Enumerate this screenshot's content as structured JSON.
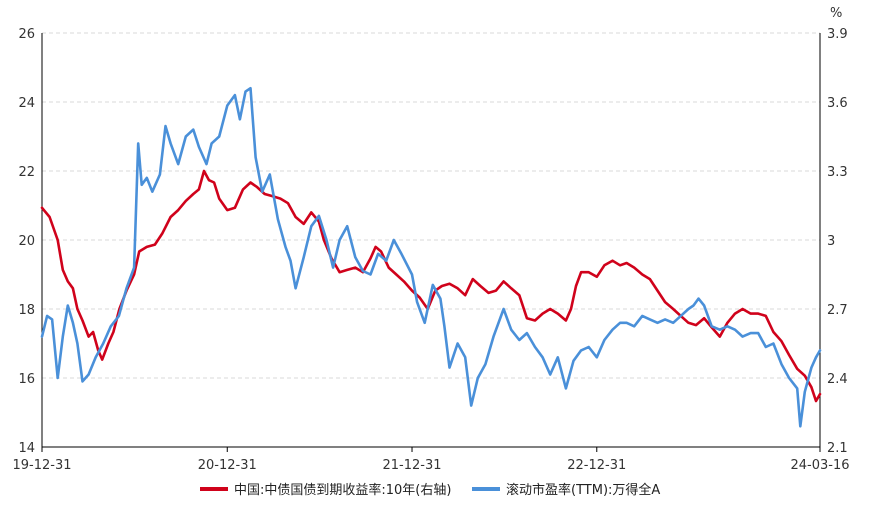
{
  "chart_data": {
    "type": "line",
    "grid": true,
    "legend_position": "bottom",
    "y_left": {
      "range": [
        14,
        26
      ],
      "ticks": [
        "14",
        "16",
        "18",
        "20",
        "22",
        "24",
        "26"
      ]
    },
    "y_right": {
      "unit": "%",
      "range": [
        2.1,
        3.9
      ],
      "ticks": [
        "2.1",
        "2.4",
        "2.7",
        "3",
        "3.3",
        "3.6",
        "3.9"
      ]
    },
    "x": {
      "range": [
        "2019-12-31",
        "2024-03-16"
      ],
      "tick_dates": [
        "2019-12-31",
        "2020-12-31",
        "2021-12-31",
        "2022-12-31",
        "2024-03-16"
      ],
      "tick_labels": [
        "19-12-31",
        "20-12-31",
        "21-12-31",
        "22-12-31",
        "24-03-16"
      ]
    },
    "series": [
      {
        "name": "中国:中债国债到期收益率:10年(右轴)",
        "axis": "right",
        "color": "#d0021b",
        "points": [
          [
            "2019-12-31",
            3.14
          ],
          [
            "2020-01-15",
            3.1
          ],
          [
            "2020-01-31",
            3.0
          ],
          [
            "2020-02-10",
            2.87
          ],
          [
            "2020-02-20",
            2.82
          ],
          [
            "2020-03-01",
            2.79
          ],
          [
            "2020-03-10",
            2.7
          ],
          [
            "2020-03-20",
            2.65
          ],
          [
            "2020-04-01",
            2.58
          ],
          [
            "2020-04-10",
            2.6
          ],
          [
            "2020-04-20",
            2.52
          ],
          [
            "2020-04-28",
            2.48
          ],
          [
            "2020-05-10",
            2.55
          ],
          [
            "2020-05-20",
            2.6
          ],
          [
            "2020-06-01",
            2.7
          ],
          [
            "2020-06-15",
            2.78
          ],
          [
            "2020-06-30",
            2.85
          ],
          [
            "2020-07-10",
            2.95
          ],
          [
            "2020-07-25",
            2.97
          ],
          [
            "2020-08-10",
            2.98
          ],
          [
            "2020-08-25",
            3.03
          ],
          [
            "2020-09-10",
            3.1
          ],
          [
            "2020-09-25",
            3.13
          ],
          [
            "2020-10-10",
            3.17
          ],
          [
            "2020-10-25",
            3.2
          ],
          [
            "2020-11-05",
            3.22
          ],
          [
            "2020-11-15",
            3.3
          ],
          [
            "2020-11-25",
            3.26
          ],
          [
            "2020-12-05",
            3.25
          ],
          [
            "2020-12-15",
            3.18
          ],
          [
            "2020-12-31",
            3.13
          ],
          [
            "2021-01-15",
            3.14
          ],
          [
            "2021-01-31",
            3.22
          ],
          [
            "2021-02-15",
            3.25
          ],
          [
            "2021-02-28",
            3.23
          ],
          [
            "2021-03-15",
            3.2
          ],
          [
            "2021-03-31",
            3.19
          ],
          [
            "2021-04-15",
            3.18
          ],
          [
            "2021-04-30",
            3.16
          ],
          [
            "2021-05-15",
            3.1
          ],
          [
            "2021-05-31",
            3.07
          ],
          [
            "2021-06-15",
            3.12
          ],
          [
            "2021-06-30",
            3.08
          ],
          [
            "2021-07-10",
            3.0
          ],
          [
            "2021-07-25",
            2.92
          ],
          [
            "2021-08-10",
            2.86
          ],
          [
            "2021-08-25",
            2.87
          ],
          [
            "2021-09-10",
            2.88
          ],
          [
            "2021-09-25",
            2.86
          ],
          [
            "2021-10-10",
            2.92
          ],
          [
            "2021-10-20",
            2.97
          ],
          [
            "2021-10-31",
            2.95
          ],
          [
            "2021-11-15",
            2.88
          ],
          [
            "2021-11-30",
            2.85
          ],
          [
            "2021-12-15",
            2.82
          ],
          [
            "2021-12-31",
            2.78
          ],
          [
            "2022-01-15",
            2.75
          ],
          [
            "2022-01-31",
            2.7
          ],
          [
            "2022-02-15",
            2.78
          ],
          [
            "2022-02-28",
            2.8
          ],
          [
            "2022-03-15",
            2.81
          ],
          [
            "2022-03-31",
            2.79
          ],
          [
            "2022-04-15",
            2.76
          ],
          [
            "2022-04-30",
            2.83
          ],
          [
            "2022-05-15",
            2.8
          ],
          [
            "2022-05-31",
            2.77
          ],
          [
            "2022-06-15",
            2.78
          ],
          [
            "2022-06-30",
            2.82
          ],
          [
            "2022-07-15",
            2.79
          ],
          [
            "2022-07-31",
            2.76
          ],
          [
            "2022-08-15",
            2.66
          ],
          [
            "2022-08-31",
            2.65
          ],
          [
            "2022-09-15",
            2.68
          ],
          [
            "2022-09-30",
            2.7
          ],
          [
            "2022-10-15",
            2.68
          ],
          [
            "2022-10-31",
            2.65
          ],
          [
            "2022-11-10",
            2.7
          ],
          [
            "2022-11-20",
            2.8
          ],
          [
            "2022-11-30",
            2.86
          ],
          [
            "2022-12-15",
            2.86
          ],
          [
            "2022-12-31",
            2.84
          ],
          [
            "2023-01-15",
            2.89
          ],
          [
            "2023-01-31",
            2.91
          ],
          [
            "2023-02-15",
            2.89
          ],
          [
            "2023-02-28",
            2.9
          ],
          [
            "2023-03-15",
            2.88
          ],
          [
            "2023-03-31",
            2.85
          ],
          [
            "2023-04-15",
            2.83
          ],
          [
            "2023-04-30",
            2.78
          ],
          [
            "2023-05-15",
            2.73
          ],
          [
            "2023-05-31",
            2.7
          ],
          [
            "2023-06-15",
            2.67
          ],
          [
            "2023-06-30",
            2.64
          ],
          [
            "2023-07-15",
            2.63
          ],
          [
            "2023-07-31",
            2.66
          ],
          [
            "2023-08-15",
            2.62
          ],
          [
            "2023-08-31",
            2.58
          ],
          [
            "2023-09-15",
            2.64
          ],
          [
            "2023-09-30",
            2.68
          ],
          [
            "2023-10-15",
            2.7
          ],
          [
            "2023-10-31",
            2.68
          ],
          [
            "2023-11-15",
            2.68
          ],
          [
            "2023-11-30",
            2.67
          ],
          [
            "2023-12-15",
            2.6
          ],
          [
            "2023-12-31",
            2.56
          ],
          [
            "2024-01-15",
            2.5
          ],
          [
            "2024-01-31",
            2.44
          ],
          [
            "2024-02-15",
            2.41
          ],
          [
            "2024-02-28",
            2.36
          ],
          [
            "2024-03-08",
            2.3
          ],
          [
            "2024-03-16",
            2.33
          ]
        ]
      },
      {
        "name": "滚动市盈率(TTM):万得全A",
        "axis": "left",
        "color": "#4a90d9",
        "points": [
          [
            "2019-12-31",
            17.2
          ],
          [
            "2020-01-10",
            17.8
          ],
          [
            "2020-01-20",
            17.7
          ],
          [
            "2020-01-31",
            16.0
          ],
          [
            "2020-02-10",
            17.2
          ],
          [
            "2020-02-20",
            18.1
          ],
          [
            "2020-03-01",
            17.6
          ],
          [
            "2020-03-10",
            17.0
          ],
          [
            "2020-03-20",
            15.9
          ],
          [
            "2020-04-01",
            16.1
          ],
          [
            "2020-04-15",
            16.6
          ],
          [
            "2020-04-30",
            17.0
          ],
          [
            "2020-05-15",
            17.5
          ],
          [
            "2020-05-31",
            17.8
          ],
          [
            "2020-06-15",
            18.6
          ],
          [
            "2020-06-30",
            19.2
          ],
          [
            "2020-07-08",
            22.8
          ],
          [
            "2020-07-15",
            21.6
          ],
          [
            "2020-07-25",
            21.8
          ],
          [
            "2020-08-05",
            21.4
          ],
          [
            "2020-08-20",
            21.9
          ],
          [
            "2020-08-31",
            23.3
          ],
          [
            "2020-09-10",
            22.8
          ],
          [
            "2020-09-25",
            22.2
          ],
          [
            "2020-10-10",
            23.0
          ],
          [
            "2020-10-25",
            23.2
          ],
          [
            "2020-11-05",
            22.7
          ],
          [
            "2020-11-20",
            22.2
          ],
          [
            "2020-11-30",
            22.8
          ],
          [
            "2020-12-15",
            23.0
          ],
          [
            "2020-12-31",
            23.9
          ],
          [
            "2021-01-15",
            24.2
          ],
          [
            "2021-01-25",
            23.5
          ],
          [
            "2021-02-05",
            24.3
          ],
          [
            "2021-02-15",
            24.4
          ],
          [
            "2021-02-25",
            22.4
          ],
          [
            "2021-03-10",
            21.4
          ],
          [
            "2021-03-25",
            21.9
          ],
          [
            "2021-04-10",
            20.6
          ],
          [
            "2021-04-25",
            19.8
          ],
          [
            "2021-05-05",
            19.4
          ],
          [
            "2021-05-15",
            18.6
          ],
          [
            "2021-05-31",
            19.5
          ],
          [
            "2021-06-15",
            20.4
          ],
          [
            "2021-06-30",
            20.7
          ],
          [
            "2021-07-15",
            20.0
          ],
          [
            "2021-07-28",
            19.2
          ],
          [
            "2021-08-10",
            20.0
          ],
          [
            "2021-08-25",
            20.4
          ],
          [
            "2021-09-10",
            19.5
          ],
          [
            "2021-09-25",
            19.1
          ],
          [
            "2021-10-10",
            19.0
          ],
          [
            "2021-10-25",
            19.6
          ],
          [
            "2021-11-10",
            19.4
          ],
          [
            "2021-11-25",
            20.0
          ],
          [
            "2021-12-10",
            19.6
          ],
          [
            "2021-12-31",
            19.0
          ],
          [
            "2022-01-10",
            18.2
          ],
          [
            "2022-01-25",
            17.6
          ],
          [
            "2022-02-10",
            18.7
          ],
          [
            "2022-02-25",
            18.3
          ],
          [
            "2022-03-05",
            17.5
          ],
          [
            "2022-03-15",
            16.3
          ],
          [
            "2022-03-31",
            17.0
          ],
          [
            "2022-04-15",
            16.6
          ],
          [
            "2022-04-27",
            15.2
          ],
          [
            "2022-05-10",
            16.0
          ],
          [
            "2022-05-25",
            16.4
          ],
          [
            "2022-06-10",
            17.2
          ],
          [
            "2022-06-30",
            18.0
          ],
          [
            "2022-07-15",
            17.4
          ],
          [
            "2022-07-31",
            17.1
          ],
          [
            "2022-08-15",
            17.3
          ],
          [
            "2022-08-31",
            16.9
          ],
          [
            "2022-09-15",
            16.6
          ],
          [
            "2022-09-30",
            16.1
          ],
          [
            "2022-10-15",
            16.6
          ],
          [
            "2022-10-31",
            15.7
          ],
          [
            "2022-11-15",
            16.5
          ],
          [
            "2022-11-30",
            16.8
          ],
          [
            "2022-12-15",
            16.9
          ],
          [
            "2022-12-31",
            16.6
          ],
          [
            "2023-01-15",
            17.1
          ],
          [
            "2023-01-31",
            17.4
          ],
          [
            "2023-02-15",
            17.6
          ],
          [
            "2023-02-28",
            17.6
          ],
          [
            "2023-03-15",
            17.5
          ],
          [
            "2023-03-31",
            17.8
          ],
          [
            "2023-04-15",
            17.7
          ],
          [
            "2023-04-30",
            17.6
          ],
          [
            "2023-05-15",
            17.7
          ],
          [
            "2023-05-31",
            17.6
          ],
          [
            "2023-06-15",
            17.8
          ],
          [
            "2023-06-30",
            18.0
          ],
          [
            "2023-07-10",
            18.1
          ],
          [
            "2023-07-20",
            18.3
          ],
          [
            "2023-07-31",
            18.1
          ],
          [
            "2023-08-15",
            17.5
          ],
          [
            "2023-08-31",
            17.4
          ],
          [
            "2023-09-15",
            17.5
          ],
          [
            "2023-09-30",
            17.4
          ],
          [
            "2023-10-15",
            17.2
          ],
          [
            "2023-10-31",
            17.3
          ],
          [
            "2023-11-15",
            17.3
          ],
          [
            "2023-11-30",
            16.9
          ],
          [
            "2023-12-15",
            17.0
          ],
          [
            "2023-12-31",
            16.4
          ],
          [
            "2024-01-15",
            16.0
          ],
          [
            "2024-01-31",
            15.7
          ],
          [
            "2024-02-06",
            14.6
          ],
          [
            "2024-02-15",
            15.6
          ],
          [
            "2024-02-28",
            16.3
          ],
          [
            "2024-03-08",
            16.6
          ],
          [
            "2024-03-16",
            16.8
          ]
        ]
      }
    ]
  }
}
